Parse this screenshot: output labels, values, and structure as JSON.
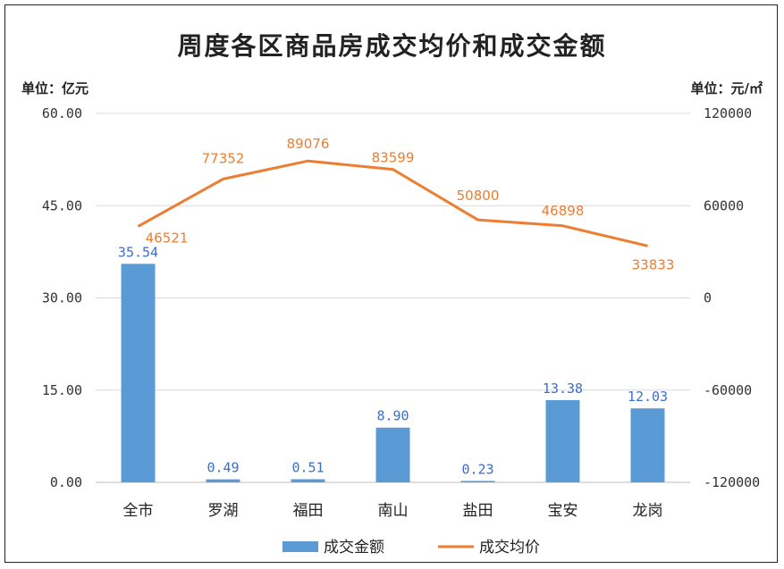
{
  "chart_data": {
    "type": "bar",
    "title": "周度各区商品房成交均价和成交金额",
    "left_unit": "单位：亿元",
    "right_unit": "单位：元/㎡",
    "categories": [
      "全市",
      "罗湖",
      "福田",
      "南山",
      "盐田",
      "宝安",
      "龙岗"
    ],
    "series": [
      {
        "name": "成交金额",
        "type": "bar",
        "axis": "left",
        "color": "#5b9bd5",
        "values": [
          35.54,
          0.49,
          0.51,
          8.9,
          0.23,
          13.38,
          12.03
        ],
        "labels": [
          "35.54",
          "0.49",
          "0.51",
          "8.90",
          "0.23",
          "13.38",
          "12.03"
        ]
      },
      {
        "name": "成交均价",
        "type": "line",
        "axis": "right",
        "color": "#ed7d31",
        "values": [
          46521,
          77352,
          89076,
          83599,
          50800,
          46898,
          33833
        ],
        "labels": [
          "46521",
          "77352",
          "89076",
          "83599",
          "50800",
          "46898",
          "33833"
        ]
      }
    ],
    "left_axis": {
      "ylim": [
        0,
        60
      ],
      "ticks": [
        "0.00",
        "15.00",
        "30.00",
        "45.00",
        "60.00"
      ]
    },
    "right_axis": {
      "ylim": [
        -120000,
        120000
      ],
      "ticks": [
        "-120000",
        "-60000",
        "0",
        "60000",
        "120000"
      ]
    },
    "grid": true,
    "legend_position": "bottom"
  }
}
